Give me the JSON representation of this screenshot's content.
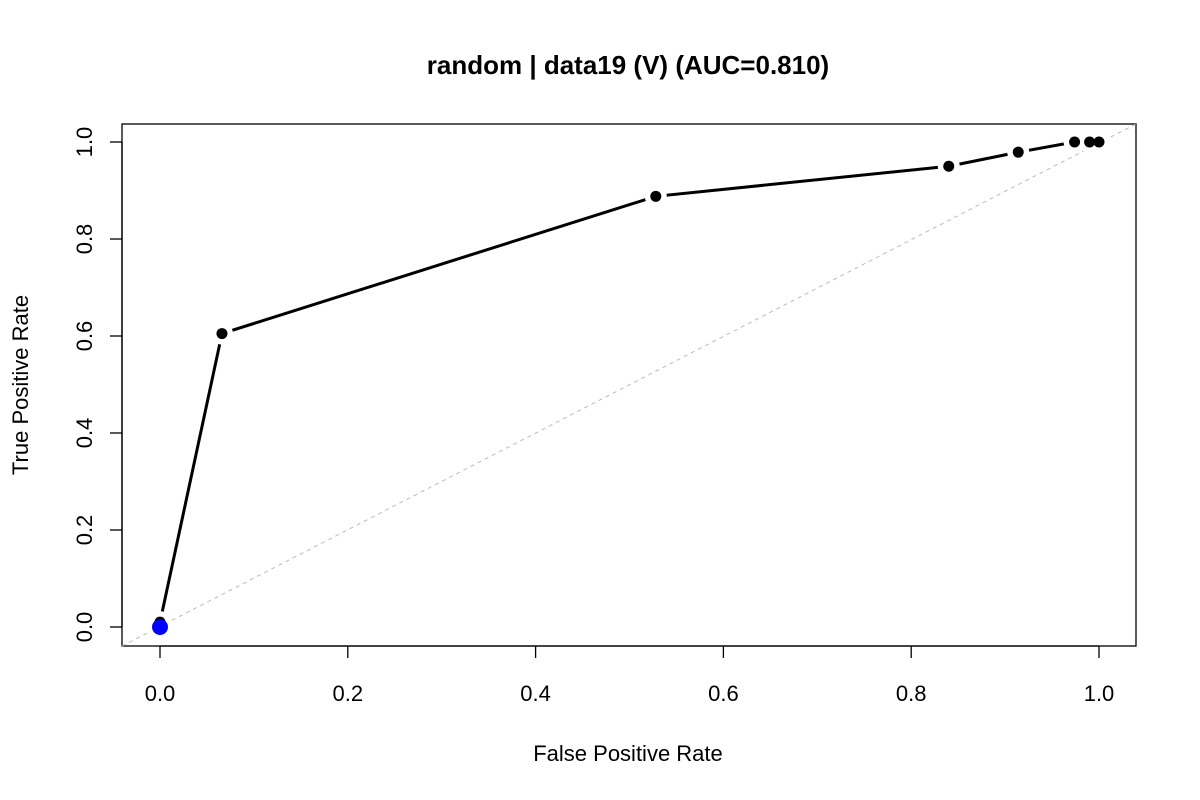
{
  "chart_data": {
    "type": "line",
    "title": "random | data19 (V) (AUC=0.810)",
    "xlabel": "False Positive Rate",
    "ylabel": "True Positive Rate",
    "xlim": [
      0,
      1
    ],
    "ylim": [
      0,
      1
    ],
    "x_ticks": [
      "0.0",
      "0.2",
      "0.4",
      "0.6",
      "0.8",
      "1.0"
    ],
    "y_ticks": [
      "0.0",
      "0.2",
      "0.4",
      "0.6",
      "0.8",
      "1.0"
    ],
    "grid": false,
    "legend": "none",
    "series": [
      {
        "x": [
          0.0,
          0.0,
          0.066,
          0.528,
          0.84,
          0.914,
          0.974,
          0.99,
          1.0
        ],
        "y": [
          0.0,
          0.01,
          0.605,
          0.888,
          0.95,
          0.979,
          1.0,
          1.0,
          1.0
        ],
        "color": "#000000"
      }
    ],
    "highlight_point": {
      "x": 0.0,
      "y": 0.0,
      "color": "#0000ff"
    },
    "reference_line": {
      "from": [
        0,
        0
      ],
      "to": [
        1,
        1
      ],
      "color": "#bbbbbb",
      "style": "dashed"
    }
  }
}
